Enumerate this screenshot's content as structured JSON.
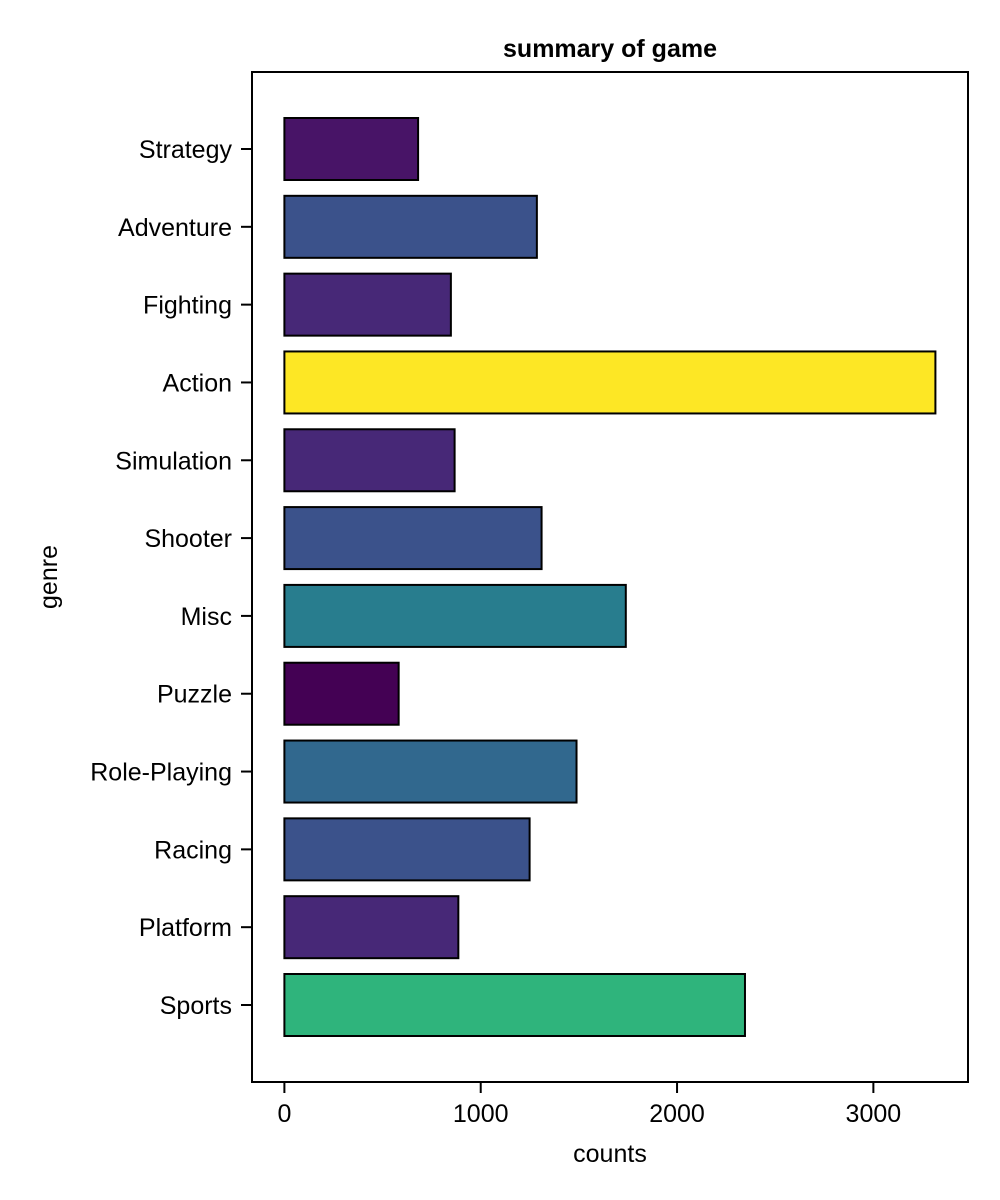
{
  "chart_data": {
    "type": "bar",
    "orientation": "horizontal",
    "title": "summary of game",
    "xlabel": "counts",
    "ylabel": "genre",
    "categories": [
      "Sports",
      "Platform",
      "Racing",
      "Role-Playing",
      "Puzzle",
      "Misc",
      "Shooter",
      "Simulation",
      "Action",
      "Fighting",
      "Adventure",
      "Strategy"
    ],
    "values": [
      2346,
      886,
      1249,
      1488,
      582,
      1739,
      1310,
      867,
      3316,
      848,
      1286,
      681
    ],
    "colors": [
      "#2fb47c",
      "#472877",
      "#3b528b",
      "#31688e",
      "#440154",
      "#287d8e",
      "#3b528b",
      "#472877",
      "#fde725",
      "#472877",
      "#3b528b",
      "#481467"
    ],
    "xlim": [
      -165,
      3482
    ],
    "xticks": [
      0,
      1000,
      2000,
      3000
    ],
    "grid": false,
    "legend": "none"
  }
}
